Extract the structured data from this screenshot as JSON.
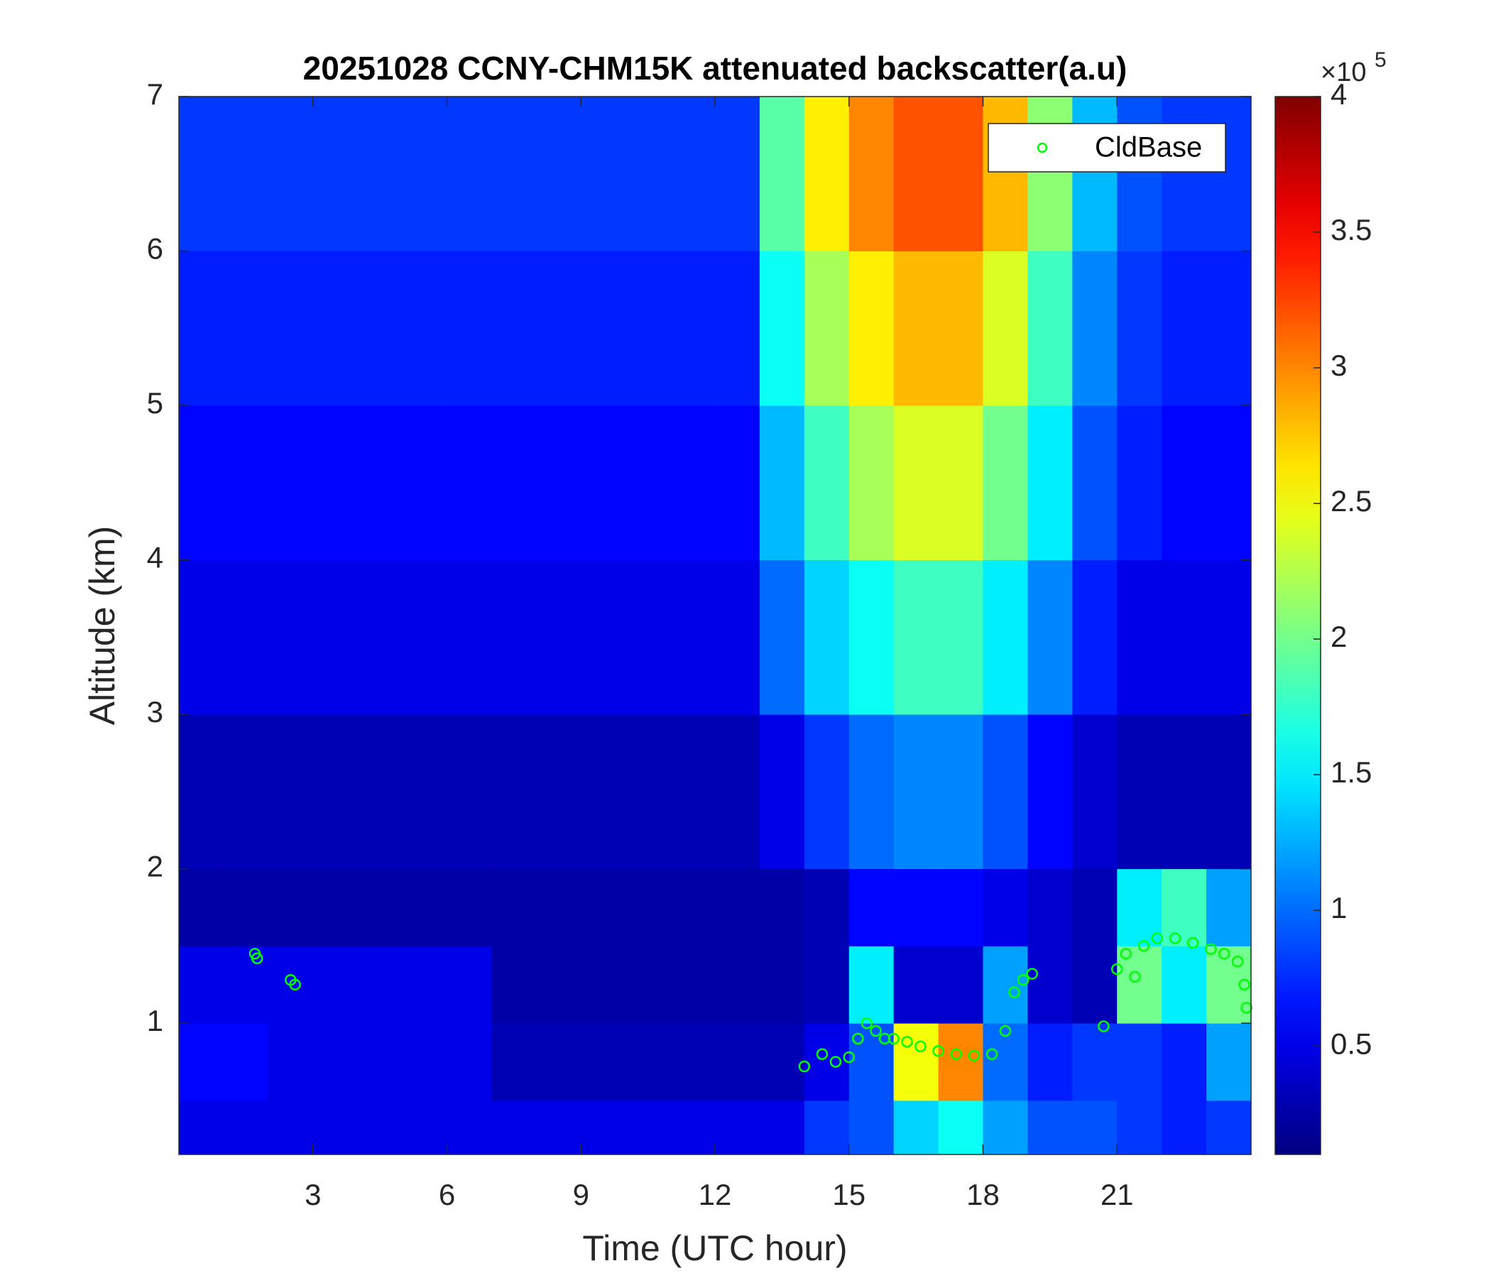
{
  "chart_data": {
    "type": "heatmap",
    "title": "20251028 CCNY-CHM15K attenuated backscatter(a.u)",
    "x_label": "Time (UTC hour)",
    "y_label": "Altitude (km)",
    "colormap": "jet",
    "xlim": [
      0,
      24
    ],
    "xticks": [
      3,
      6,
      9,
      12,
      15,
      18,
      21
    ],
    "ylim": [
      0.15,
      7
    ],
    "yticks": [
      1,
      2,
      3,
      4,
      5,
      6,
      7
    ],
    "clim": [
      0.1,
      4
    ],
    "cticks": [
      0.5,
      1,
      1.5,
      2,
      2.5,
      3,
      3.5,
      4
    ],
    "cbar_multiplier": {
      "base": "×10",
      "exponent": 5
    },
    "x_edges": [
      0,
      1,
      2,
      3,
      4,
      5,
      6,
      7,
      8,
      9,
      10,
      11,
      12,
      13,
      14,
      15,
      16,
      17,
      18,
      19,
      20,
      21,
      22,
      23,
      24
    ],
    "y_edges": [
      0.15,
      0.5,
      1,
      1.5,
      2,
      3,
      4,
      5,
      6,
      7
    ],
    "z": [
      [
        0.5,
        0.5,
        0.5,
        0.5,
        0.5,
        0.5,
        0.5,
        0.5,
        0.5,
        0.5,
        0.5,
        0.5,
        0.5,
        0.5,
        0.8,
        0.9,
        1.4,
        1.6,
        1.2,
        0.9,
        0.9,
        0.8,
        0.7,
        0.8
      ],
      [
        0.6,
        0.6,
        0.5,
        0.5,
        0.5,
        0.5,
        0.5,
        0.3,
        0.3,
        0.3,
        0.3,
        0.3,
        0.3,
        0.3,
        0.5,
        0.9,
        2.5,
        3.0,
        1.0,
        0.7,
        0.8,
        0.8,
        0.7,
        1.2
      ],
      [
        0.5,
        0.5,
        0.5,
        0.5,
        0.5,
        0.5,
        0.5,
        0.25,
        0.25,
        0.25,
        0.25,
        0.25,
        0.25,
        0.25,
        0.3,
        1.5,
        0.4,
        0.4,
        1.2,
        0.4,
        0.3,
        2.0,
        1.5,
        2.0
      ],
      [
        0.25,
        0.25,
        0.25,
        0.25,
        0.25,
        0.25,
        0.25,
        0.25,
        0.25,
        0.25,
        0.25,
        0.25,
        0.25,
        0.25,
        0.3,
        0.6,
        0.6,
        0.6,
        0.5,
        0.4,
        0.3,
        1.5,
        1.8,
        1.2
      ],
      [
        0.3,
        0.3,
        0.3,
        0.3,
        0.3,
        0.3,
        0.3,
        0.3,
        0.3,
        0.3,
        0.3,
        0.3,
        0.3,
        0.5,
        0.8,
        1.0,
        1.1,
        1.1,
        0.9,
        0.6,
        0.4,
        0.3,
        0.3,
        0.3
      ],
      [
        0.5,
        0.5,
        0.5,
        0.5,
        0.5,
        0.5,
        0.5,
        0.5,
        0.5,
        0.5,
        0.5,
        0.5,
        0.5,
        1.0,
        1.4,
        1.6,
        1.8,
        1.8,
        1.5,
        1.1,
        0.7,
        0.5,
        0.5,
        0.5
      ],
      [
        0.6,
        0.6,
        0.6,
        0.6,
        0.6,
        0.6,
        0.6,
        0.6,
        0.6,
        0.6,
        0.6,
        0.6,
        0.6,
        1.3,
        1.8,
        2.2,
        2.4,
        2.4,
        2.0,
        1.5,
        0.9,
        0.7,
        0.6,
        0.6
      ],
      [
        0.7,
        0.7,
        0.7,
        0.7,
        0.7,
        0.7,
        0.7,
        0.7,
        0.7,
        0.7,
        0.7,
        0.7,
        0.7,
        1.6,
        2.2,
        2.6,
        2.8,
        2.8,
        2.4,
        1.8,
        1.1,
        0.8,
        0.7,
        0.7
      ],
      [
        0.8,
        0.8,
        0.8,
        0.8,
        0.8,
        0.8,
        0.8,
        0.8,
        0.8,
        0.8,
        0.8,
        0.8,
        0.8,
        1.9,
        2.6,
        3.0,
        3.2,
        3.2,
        2.8,
        2.1,
        1.3,
        0.9,
        0.8,
        0.8
      ]
    ],
    "series": [
      {
        "name": "CldBase",
        "color": "#00ff00",
        "x": [
          1.7,
          1.75,
          2.5,
          2.6,
          14.0,
          14.4,
          14.7,
          15.0,
          15.2,
          15.4,
          15.6,
          15.8,
          16.0,
          16.3,
          16.6,
          17.0,
          17.4,
          17.8,
          18.2,
          18.5,
          18.7,
          18.9,
          19.1,
          20.7,
          21.0,
          21.2,
          21.4,
          21.6,
          21.9,
          22.3,
          22.7,
          23.1,
          23.4,
          23.7,
          23.85,
          23.9
        ],
        "y": [
          1.45,
          1.42,
          1.28,
          1.25,
          0.72,
          0.8,
          0.75,
          0.78,
          0.9,
          1.0,
          0.95,
          0.9,
          0.9,
          0.88,
          0.85,
          0.82,
          0.8,
          0.79,
          0.8,
          0.95,
          1.2,
          1.28,
          1.32,
          0.98,
          1.35,
          1.45,
          1.3,
          1.5,
          1.55,
          1.55,
          1.52,
          1.48,
          1.45,
          1.4,
          1.25,
          1.1
        ]
      }
    ],
    "legend": "top-right"
  }
}
